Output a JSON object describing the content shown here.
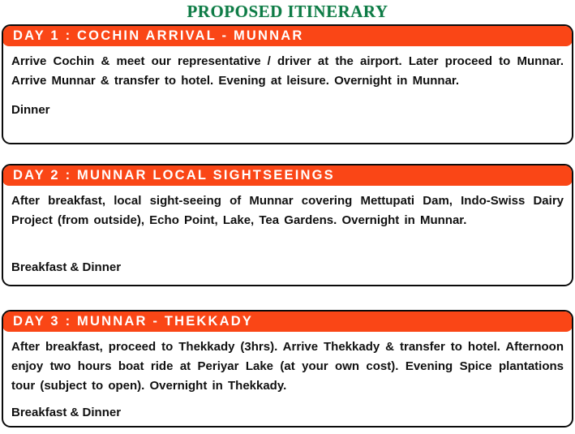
{
  "page": {
    "title": "PROPOSED ITINERARY"
  },
  "colors": {
    "title_green": "#0e7b46",
    "header_orange": "#fa4616",
    "body_text": "#101010",
    "card_border": "#0b0b0b"
  },
  "days": [
    {
      "header": "DAY 1 : COCHIN ARRIVAL - MUNNAR",
      "body": "Arrive Cochin & meet our representative / driver at the airport. Later proceed to Munnar. Arrive Munnar & transfer to hotel. Evening at leisure. Overnight in Munnar.",
      "meals": "Dinner"
    },
    {
      "header": "DAY 2 : MUNNAR LOCAL SIGHTSEEINGS",
      "body": "After breakfast, local sight-seeing of Munnar covering Mettupati Dam, Indo-Swiss Dairy Project (from outside), Echo Point, Lake, Tea Gardens. Overnight in Munnar.",
      "meals": "Breakfast & Dinner"
    },
    {
      "header": "DAY 3 : MUNNAR - THEKKADY",
      "body": "After breakfast, proceed to Thekkady (3hrs). Arrive Thekkady & transfer to hotel. Afternoon enjoy two hours boat ride at Periyar Lake (at your own cost). Evening Spice plantations tour (subject to open). Overnight in Thekkady.",
      "meals": "Breakfast & Dinner"
    }
  ]
}
